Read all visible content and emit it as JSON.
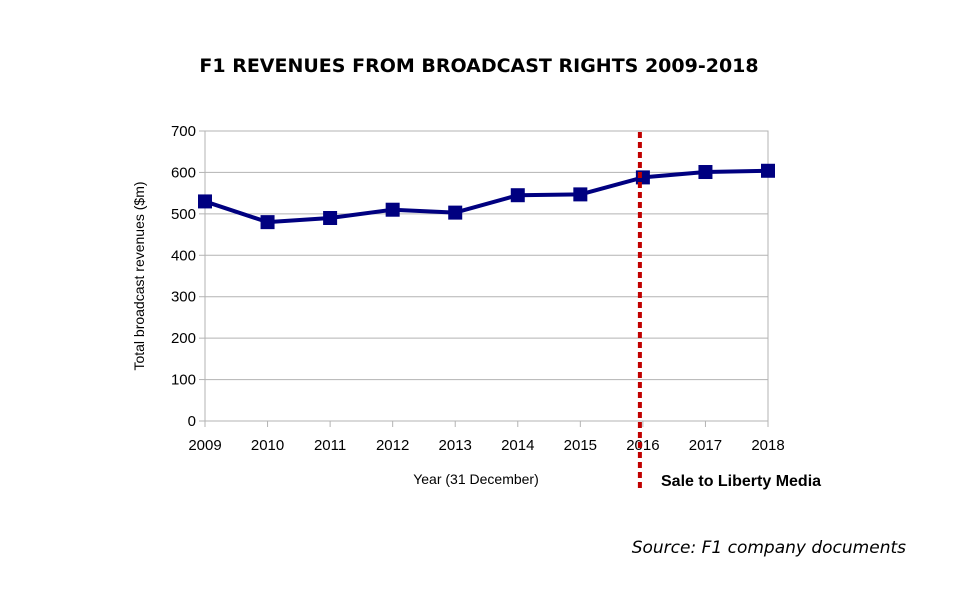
{
  "chart_data": {
    "type": "line",
    "title": "F1 REVENUES FROM BROADCAST RIGHTS 2009-2018",
    "xlabel": "Year (31 December)",
    "ylabel": "Total broadcast revenues ($m)",
    "x": [
      2009,
      2010,
      2011,
      2012,
      2013,
      2014,
      2015,
      2016,
      2017,
      2018
    ],
    "series": [
      {
        "values": [
          530,
          480,
          490,
          510,
          503,
          545,
          547,
          588,
          601,
          604
        ]
      }
    ],
    "ylim": [
      0,
      700
    ],
    "yticks": [
      0,
      100,
      200,
      300,
      400,
      500,
      600,
      700
    ],
    "grid": true,
    "legend": "none",
    "line_color": "#000080",
    "marker_color": "#000080",
    "annotation": {
      "x": 2016,
      "label": "Sale to Liberty Media",
      "color": "#c00000"
    },
    "source": "Source: F1 company documents"
  }
}
